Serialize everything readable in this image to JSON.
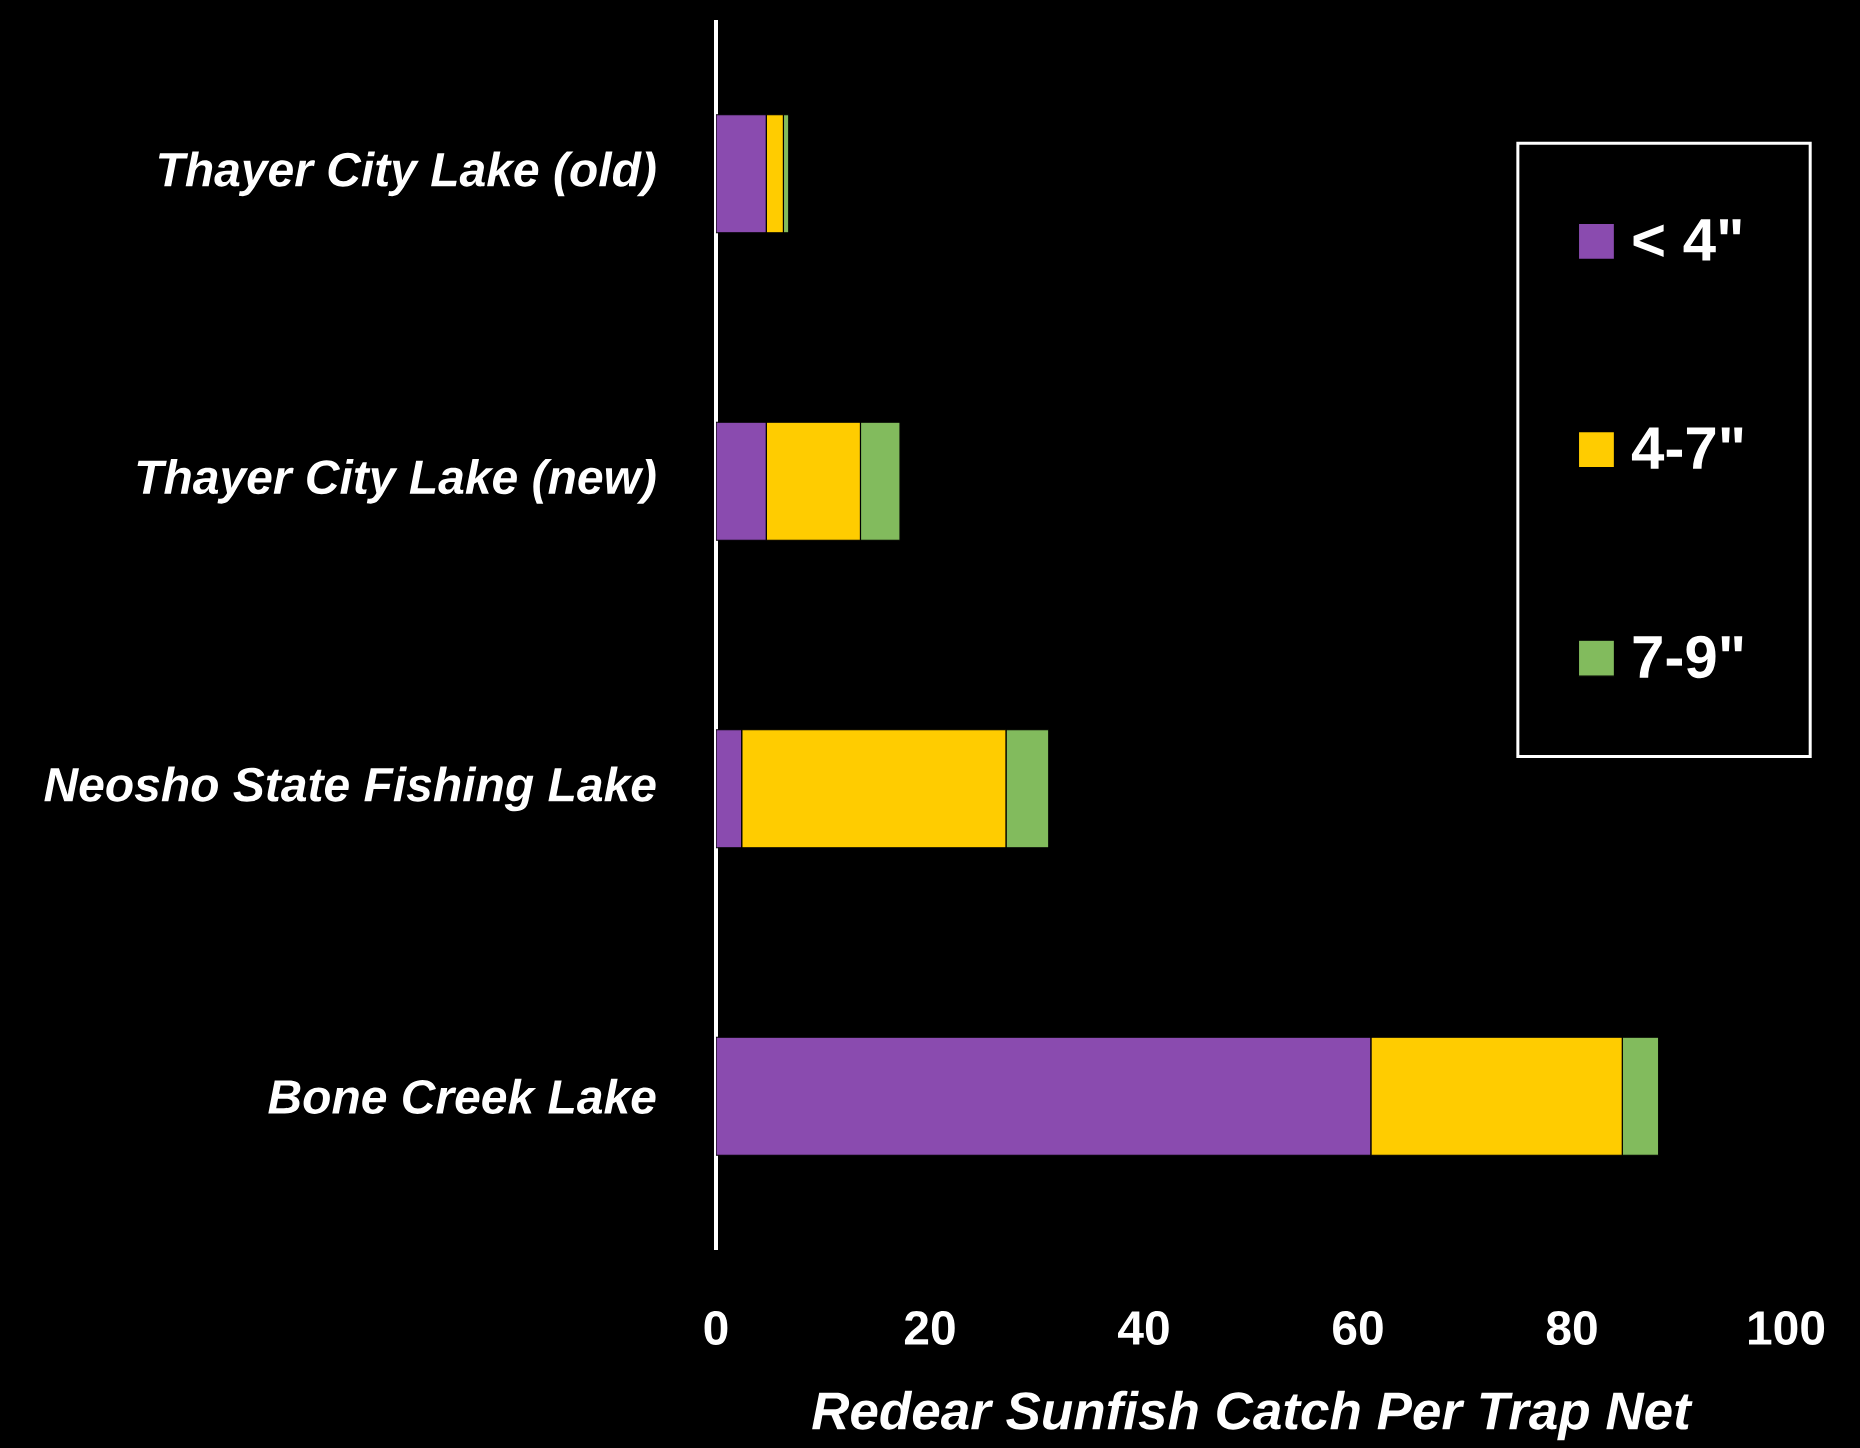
{
  "chart_data": {
    "type": "bar",
    "orientation": "horizontal",
    "stacked": true,
    "xlabel": "Redear Sunfish Catch Per Trap Net",
    "categories": [
      "Thayer City Lake (old)",
      "Thayer City Lake (new)",
      "Neosho State Fishing Lake",
      "Bone Creek Lake"
    ],
    "series": [
      {
        "name": "< 4\"",
        "color": "#8A4BAF",
        "values": [
          4.7,
          4.7,
          2.4,
          61.2
        ]
      },
      {
        "name": "4-7\"",
        "color": "#FFCC00",
        "values": [
          1.6,
          8.8,
          24.7,
          23.5
        ]
      },
      {
        "name": "7-9\"",
        "color": "#82BB5D",
        "values": [
          0.5,
          3.7,
          4.0,
          3.4
        ]
      }
    ],
    "xlim": [
      0,
      100
    ],
    "xticks": [
      0,
      20,
      40,
      60,
      80,
      100
    ],
    "legend": "top right"
  }
}
